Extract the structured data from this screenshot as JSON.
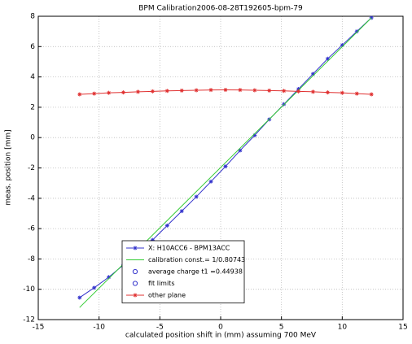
{
  "chart_data": {
    "type": "line",
    "title": "BPM Calibration2006-08-28T192605-bpm-79",
    "x_label": "calculated position shift in (mm) assuming 700 MeV",
    "y_label": "meas. position [mm]",
    "xlim": [
      -15,
      15
    ],
    "xticks": [
      -15,
      -10,
      -5,
      0,
      5,
      10,
      15
    ],
    "ylim": [
      -12,
      8
    ],
    "yticks": [
      -12,
      -10,
      -8,
      -6,
      -4,
      -2,
      0,
      2,
      4,
      6,
      8
    ],
    "grid": true,
    "series": [
      {
        "name": "X: H10ACC6 - BPM13ACC",
        "color": "#3333cc",
        "marker": "star",
        "x": [
          -11.6,
          -10.4,
          -9.2,
          -8.0,
          -6.8,
          -5.6,
          -4.4,
          -3.2,
          -2.0,
          -0.8,
          0.4,
          1.6,
          2.8,
          4.0,
          5.2,
          6.4,
          7.6,
          8.8,
          10.0,
          11.2,
          12.4
        ],
        "values": [
          -10.55,
          -9.9,
          -9.2,
          -8.4,
          -7.6,
          -6.75,
          -5.8,
          -4.85,
          -3.9,
          -2.9,
          -1.9,
          -0.85,
          0.15,
          1.2,
          2.2,
          3.2,
          4.2,
          5.2,
          6.1,
          7.0,
          7.9
        ]
      },
      {
        "name": "calibration const.= 1/0.80743",
        "color": "#33cc33",
        "marker": "none",
        "x": [
          -11.6,
          12.4
        ],
        "values": [
          -11.2,
          7.9
        ]
      },
      {
        "name": "other plane",
        "color": "#e03030",
        "marker": "star",
        "x": [
          -11.6,
          -10.4,
          -9.2,
          -8.0,
          -6.8,
          -5.6,
          -4.4,
          -3.2,
          -2.0,
          -0.8,
          0.4,
          1.6,
          2.8,
          4.0,
          5.2,
          6.4,
          7.6,
          8.8,
          10.0,
          11.2,
          12.4
        ],
        "values": [
          2.85,
          2.9,
          2.95,
          2.98,
          3.02,
          3.05,
          3.08,
          3.1,
          3.12,
          3.14,
          3.15,
          3.14,
          3.12,
          3.1,
          3.08,
          3.05,
          3.02,
          2.98,
          2.95,
          2.9,
          2.85
        ]
      }
    ],
    "extra_legend": [
      {
        "name": "average charge t1 =0.44938",
        "color": "#3333cc",
        "marker": "circle"
      },
      {
        "name": "fit limits",
        "color": "#3333cc",
        "marker": "circle"
      }
    ]
  }
}
